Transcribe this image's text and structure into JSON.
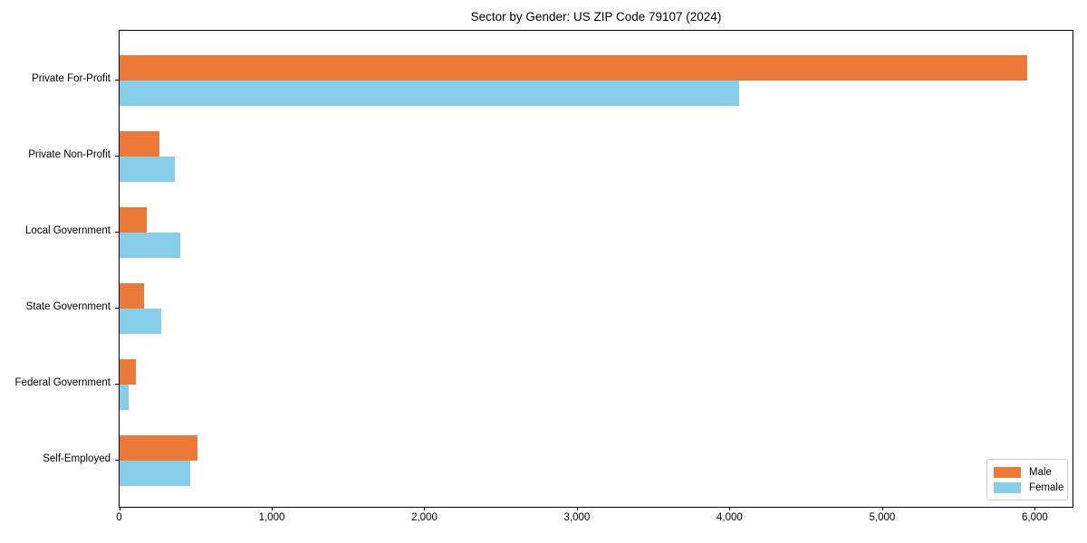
{
  "chart_data": {
    "type": "bar",
    "orientation": "horizontal",
    "title": "Sector by Gender: US ZIP Code 79107 (2024)",
    "categories": [
      "Private For-Profit",
      "Private Non-Profit",
      "Local Government",
      "State Government",
      "Federal Government",
      "Self-Employed"
    ],
    "series": [
      {
        "name": "Male",
        "color": "#EB7A39",
        "values": [
          5950,
          260,
          180,
          160,
          105,
          510
        ]
      },
      {
        "name": "Female",
        "color": "#87CEEB",
        "values": [
          4060,
          365,
          395,
          275,
          60,
          460
        ]
      }
    ],
    "xlabel": "",
    "ylabel": "",
    "xlim": [
      0,
      6250
    ],
    "x_ticks": [
      0,
      1000,
      2000,
      3000,
      4000,
      5000,
      6000
    ],
    "x_tick_labels": [
      "0",
      "1,000",
      "2,000",
      "3,000",
      "4,000",
      "5,000",
      "6,000"
    ],
    "grid": false,
    "legend": {
      "position": "lower right",
      "entries": [
        "Male",
        "Female"
      ]
    },
    "colors": {
      "male": "#EB7A39",
      "female": "#87CEEB",
      "axis": "#000000",
      "legend_border": "#cccccc",
      "background": "#ffffff"
    }
  }
}
